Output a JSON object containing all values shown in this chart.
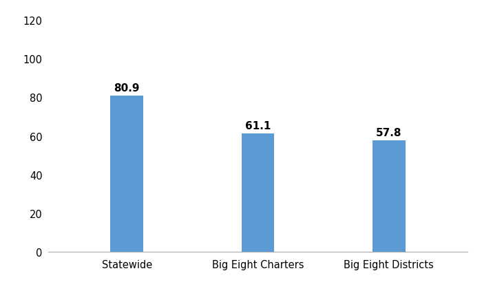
{
  "categories": [
    "Statewide",
    "Big Eight Charters",
    "Big Eight Districts"
  ],
  "values": [
    80.9,
    61.1,
    57.8
  ],
  "bar_color": "#5B9BD5",
  "ylim": [
    0,
    120
  ],
  "yticks": [
    0,
    20,
    40,
    60,
    80,
    100,
    120
  ],
  "label_fontsize": 11,
  "tick_fontsize": 10.5,
  "bar_width": 0.25,
  "background_color": "#ffffff",
  "label_color": "#000000",
  "label_fontweight": "bold"
}
